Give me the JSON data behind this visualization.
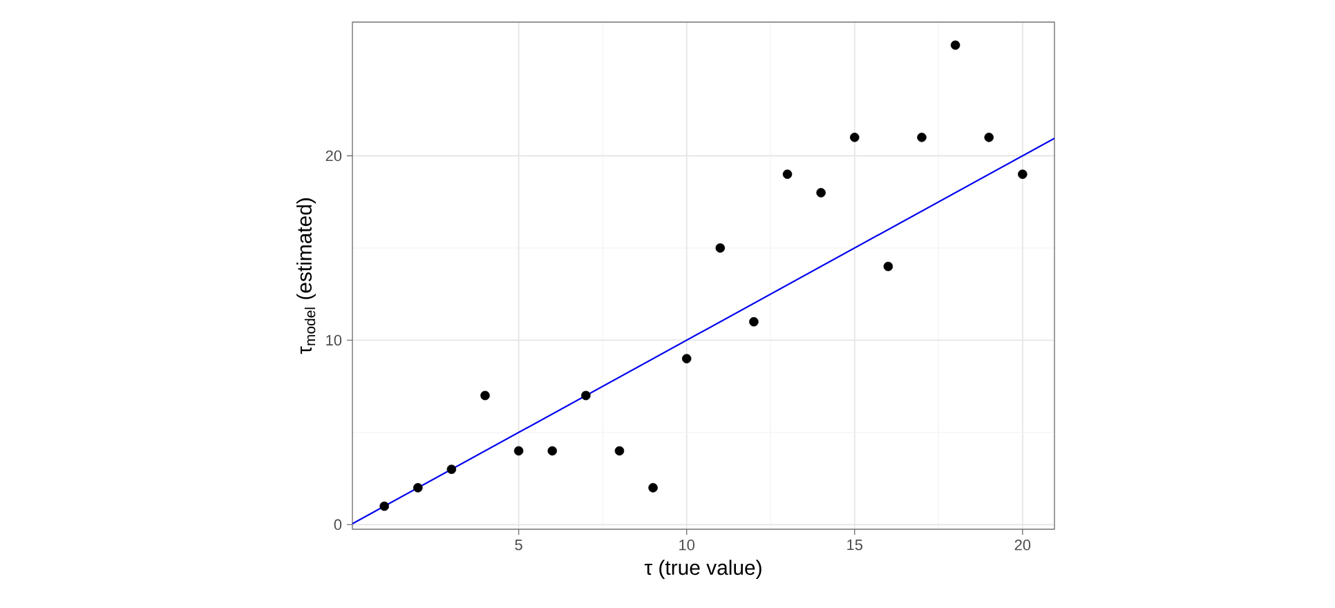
{
  "chart_data": {
    "type": "scatter",
    "xlabel": "τ (true value)",
    "ylabel": "τ$_{model}$ (estimated)",
    "x": [
      1,
      2,
      3,
      4,
      5,
      6,
      7,
      8,
      9,
      10,
      11,
      12,
      13,
      14,
      15,
      16,
      17,
      18,
      19,
      20
    ],
    "series": [
      {
        "color": "#000000",
        "values": [
          1,
          2,
          3,
          7,
          4,
          4,
          7,
          4,
          2,
          9,
          15,
          11,
          19,
          18,
          21,
          14,
          21,
          26,
          21,
          19
        ]
      },
      {
        "type": "line",
        "color": "#0000ee",
        "x": [
          0.05,
          20.95
        ],
        "values": [
          0.05,
          20.95
        ],
        "line_style": "solid",
        "marker": "none"
      }
    ],
    "xlim": [
      0.05,
      20.95
    ],
    "ylim": [
      -0.25,
      27.25
    ],
    "xticks": [
      5,
      10,
      15,
      20
    ],
    "yticks": [
      0,
      10,
      20
    ],
    "grid": true,
    "marker": "circle"
  }
}
